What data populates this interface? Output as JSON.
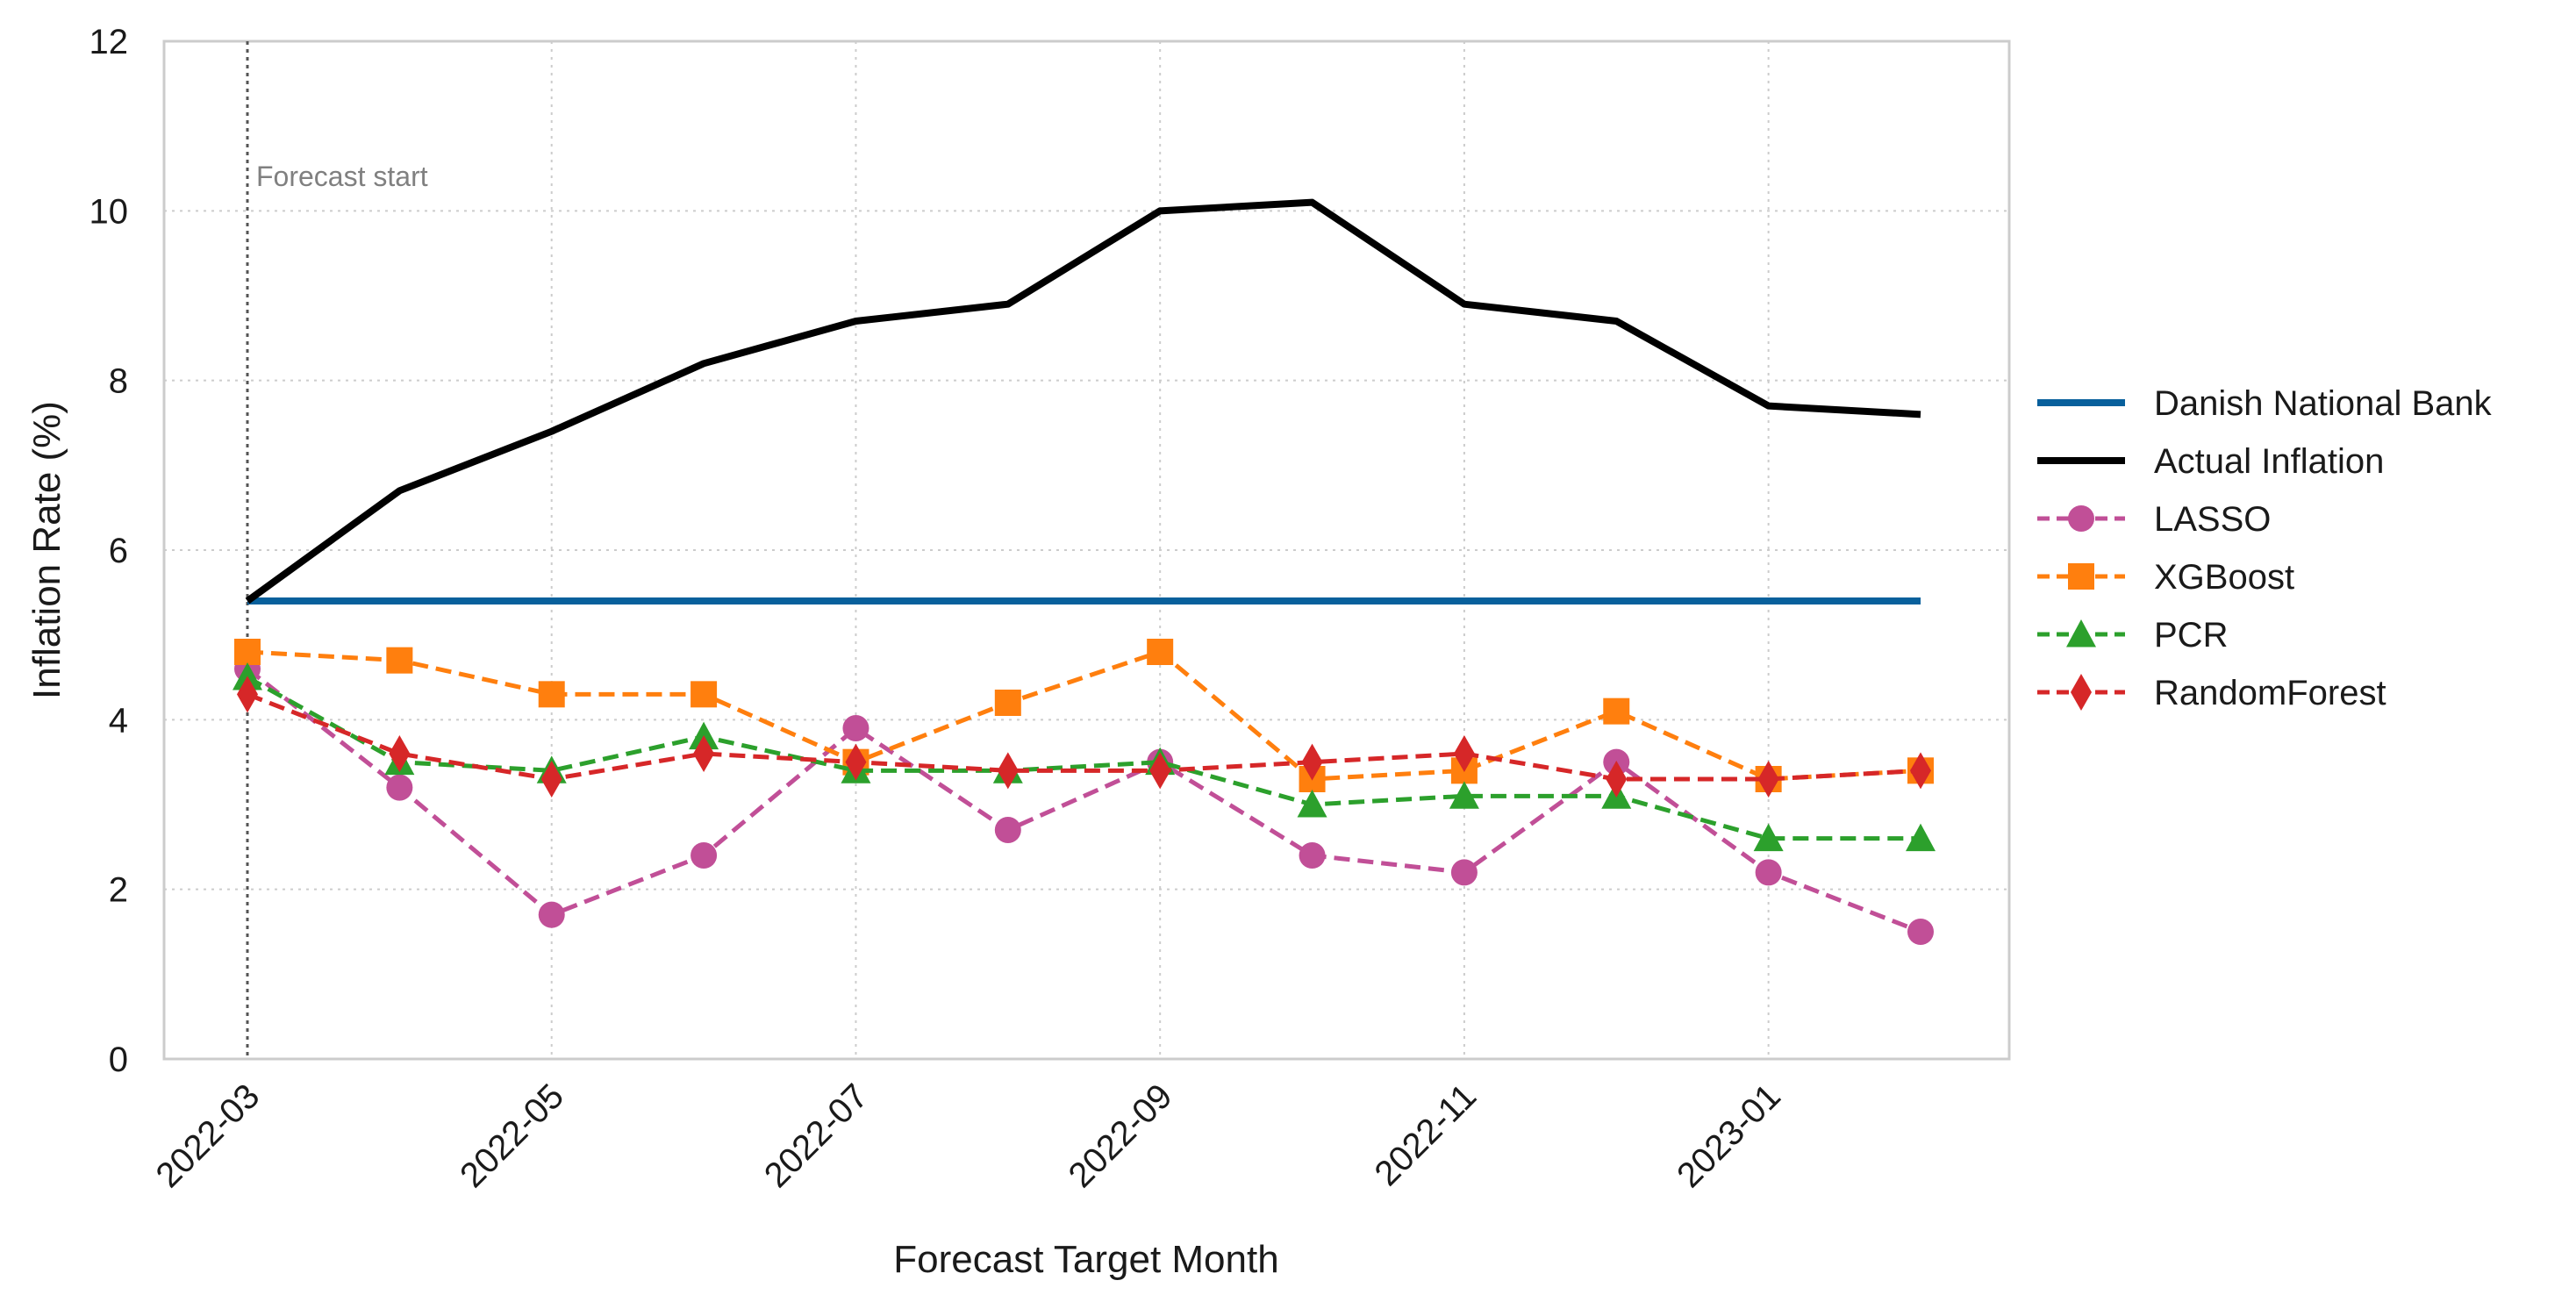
{
  "chart_data": {
    "type": "line",
    "title": "",
    "xlabel": "Forecast Target Month",
    "ylabel": "Inflation Rate (%)",
    "ylim": [
      0,
      12
    ],
    "yticks": [
      "0",
      "2",
      "4",
      "6",
      "8",
      "10",
      "12"
    ],
    "x": [
      "2022-03",
      "2022-04",
      "2022-05",
      "2022-06",
      "2022-07",
      "2022-08",
      "2022-09",
      "2022-10",
      "2022-11",
      "2022-12",
      "2023-01",
      "2023-02"
    ],
    "xtick_labels": [
      "2022-03",
      "2022-05",
      "2022-07",
      "2022-09",
      "2022-11",
      "2023-01"
    ],
    "grid": true,
    "legend_position": "right",
    "annotation": {
      "text": "Forecast start",
      "x": "2022-03"
    },
    "series": [
      {
        "name": "Danish National Bank",
        "color": "#08609c",
        "style": "solid",
        "marker": "none",
        "values": [
          5.4,
          5.4,
          5.4,
          5.4,
          5.4,
          5.4,
          5.4,
          5.4,
          5.4,
          5.4,
          5.4,
          5.4
        ]
      },
      {
        "name": "Actual Inflation",
        "color": "#000000",
        "style": "solid",
        "marker": "none",
        "values": [
          5.4,
          6.7,
          7.4,
          8.2,
          8.7,
          8.9,
          10.0,
          10.1,
          8.9,
          8.7,
          7.7,
          7.6
        ]
      },
      {
        "name": "LASSO",
        "color": "#c14f97",
        "style": "dashed",
        "marker": "circle",
        "values": [
          4.6,
          3.2,
          1.7,
          2.4,
          3.9,
          2.7,
          3.5,
          2.4,
          2.2,
          3.5,
          2.2,
          1.5
        ]
      },
      {
        "name": "XGBoost",
        "color": "#ff7f0e",
        "style": "dashed",
        "marker": "square",
        "values": [
          4.8,
          4.7,
          4.3,
          4.3,
          3.5,
          4.2,
          4.8,
          3.3,
          3.4,
          4.1,
          3.3,
          3.4
        ]
      },
      {
        "name": "PCR",
        "color": "#2ca02c",
        "style": "dashed",
        "marker": "triangle",
        "values": [
          4.5,
          3.5,
          3.4,
          3.8,
          3.4,
          3.4,
          3.5,
          3.0,
          3.1,
          3.1,
          2.6,
          2.6
        ]
      },
      {
        "name": "RandomForest",
        "color": "#d62728",
        "style": "dashed",
        "marker": "diamond",
        "values": [
          4.3,
          3.6,
          3.3,
          3.6,
          3.5,
          3.4,
          3.4,
          3.5,
          3.6,
          3.3,
          3.3,
          3.4
        ]
      }
    ]
  }
}
